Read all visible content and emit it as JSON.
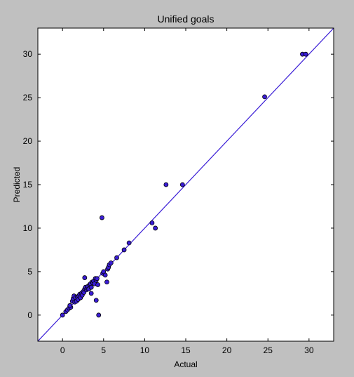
{
  "chart_data": {
    "type": "scatter",
    "title": "Unified goals",
    "xlabel": "Actual",
    "ylabel": "Predicted",
    "xlim": [
      -3,
      33
    ],
    "ylim": [
      -3,
      33
    ],
    "xticks": [
      0,
      5,
      10,
      15,
      20,
      25,
      30
    ],
    "yticks": [
      0,
      5,
      10,
      15,
      20,
      25,
      30
    ],
    "grid": false,
    "colors": {
      "point_fill": "#3a1dd6",
      "point_edge": "#000000",
      "line": "#3a1dd6",
      "plot_bg": "#ffffff",
      "figure_bg": "#c0c0c0"
    },
    "reference_line": {
      "x": [
        -3,
        33
      ],
      "y": [
        -3,
        33
      ]
    },
    "series": [
      {
        "points": [
          [
            0,
            0
          ],
          [
            0.4,
            0.4
          ],
          [
            0.6,
            0.6
          ],
          [
            0.8,
            0.8
          ],
          [
            1.0,
            0.9
          ],
          [
            0.9,
            1.1
          ],
          [
            1.2,
            1.6
          ],
          [
            1.3,
            1.9
          ],
          [
            1.4,
            2.2
          ],
          [
            1.5,
            1.5
          ],
          [
            1.6,
            2.0
          ],
          [
            1.7,
            1.6
          ],
          [
            1.8,
            2.1
          ],
          [
            1.9,
            1.8
          ],
          [
            2.0,
            2.2
          ],
          [
            2.1,
            2.4
          ],
          [
            2.2,
            2.0
          ],
          [
            2.3,
            2.5
          ],
          [
            2.4,
            2.3
          ],
          [
            2.5,
            2.7
          ],
          [
            2.6,
            2.6
          ],
          [
            2.7,
            3.0
          ],
          [
            2.8,
            3.2
          ],
          [
            2.9,
            2.9
          ],
          [
            3.0,
            3.1
          ],
          [
            3.1,
            3.3
          ],
          [
            3.2,
            3.0
          ],
          [
            3.3,
            3.5
          ],
          [
            3.4,
            3.6
          ],
          [
            3.5,
            3.2
          ],
          [
            3.6,
            3.8
          ],
          [
            3.7,
            3.7
          ],
          [
            3.8,
            3.9
          ],
          [
            3.9,
            3.6
          ],
          [
            4.0,
            4.2
          ],
          [
            4.1,
            4.0
          ],
          [
            4.2,
            4.2
          ],
          [
            4.3,
            3.5
          ],
          [
            2.7,
            4.3
          ],
          [
            3.5,
            2.5
          ],
          [
            4.1,
            1.7
          ],
          [
            4.4,
            0.0
          ],
          [
            4.8,
            11.2
          ],
          [
            4.9,
            4.8
          ],
          [
            5.0,
            5.0
          ],
          [
            5.2,
            4.6
          ],
          [
            5.4,
            3.8
          ],
          [
            5.5,
            5.3
          ],
          [
            5.6,
            5.5
          ],
          [
            5.7,
            5.8
          ],
          [
            5.9,
            6.0
          ],
          [
            6.6,
            6.6
          ],
          [
            7.5,
            7.5
          ],
          [
            8.1,
            8.3
          ],
          [
            10.9,
            10.6
          ],
          [
            11.3,
            10.0
          ],
          [
            12.6,
            15.0
          ],
          [
            14.6,
            15.0
          ],
          [
            24.6,
            25.1
          ],
          [
            29.2,
            30.0
          ],
          [
            29.6,
            30.0
          ]
        ]
      }
    ]
  }
}
